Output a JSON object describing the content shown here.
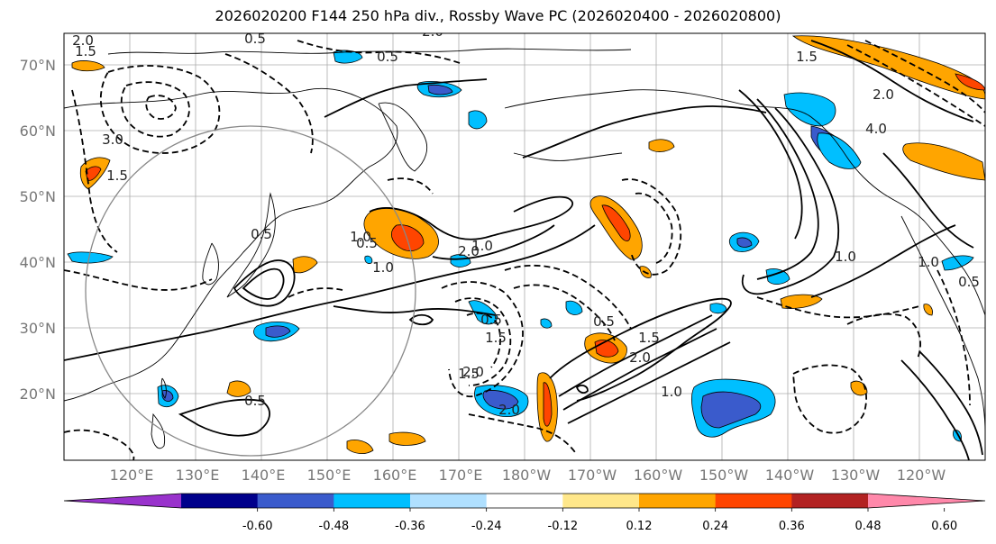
{
  "title": "2026020200 F144 250 hPa div., Rossby Wave PC (2026020400 - 2026020800)",
  "lat_labels": [
    "70°N",
    "60°N",
    "50°N",
    "40°N",
    "30°N",
    "20°N"
  ],
  "lon_labels": [
    "120°E",
    "130°E",
    "140°E",
    "150°E",
    "160°E",
    "170°E",
    "180°W",
    "170°W",
    "160°W",
    "150°W",
    "140°W",
    "130°W",
    "120°W"
  ],
  "colorbar": {
    "colors": [
      "#9932cc",
      "#00008b",
      "#3a5bcc",
      "#00bfff",
      "#b0e0ff",
      "#ffffff",
      "#ffe78a",
      "#ffa500",
      "#ff4500",
      "#b22222",
      "#ff88aa"
    ],
    "tick_labels": [
      "-0.60",
      "-0.48",
      "-0.36",
      "-0.24",
      "-0.12",
      "0.12",
      "0.24",
      "0.36",
      "0.48",
      "0.60"
    ]
  },
  "contour_labels": [
    "2.0",
    "1.5",
    "0.5",
    "2.0",
    "3.0",
    "1.5",
    "0.5",
    "1.0",
    "0.5",
    "0.5",
    "2.0",
    "1.0",
    "0.5",
    "2.0",
    "1.5",
    "2.0",
    "0.5",
    "1.5",
    "2.0",
    "1.0",
    "1.5",
    "0.5",
    "1.0",
    "1.5",
    "4.0",
    "2.0",
    "1.0",
    "0.5",
    "1.0"
  ]
}
